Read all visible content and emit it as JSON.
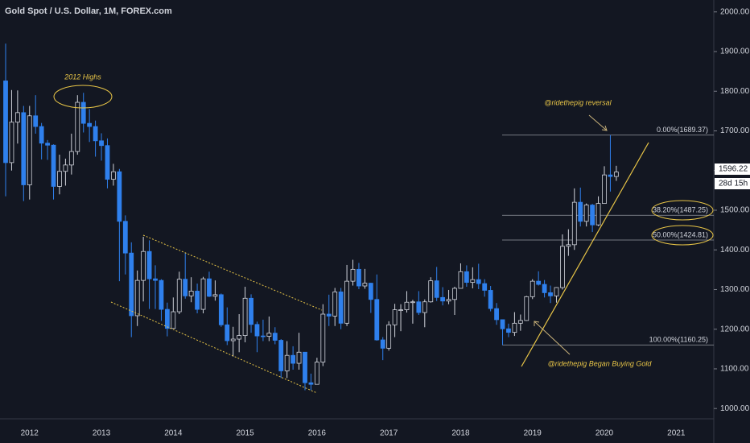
{
  "chart_data": {
    "type": "candlestick",
    "title": "Gold Spot / U.S. Dollar, 1M, FOREX.com",
    "categories": [
      null,
      null,
      null,
      null,
      "2012",
      null,
      null,
      null,
      null,
      null,
      null,
      null,
      null,
      null,
      null,
      null,
      "2013",
      null,
      null,
      null,
      null,
      null,
      null,
      null,
      null,
      null,
      null,
      null,
      "2014",
      null,
      null,
      null,
      null,
      null,
      null,
      null,
      null,
      null,
      null,
      null,
      "2015",
      null,
      null,
      null,
      null,
      null,
      null,
      null,
      null,
      null,
      null,
      null,
      "2016",
      null,
      null,
      null,
      null,
      null,
      null,
      null,
      null,
      null,
      null,
      null,
      "2017",
      null,
      null,
      null,
      null,
      null,
      null,
      null,
      null,
      null,
      null,
      null,
      "2018",
      null,
      null,
      null,
      null,
      null,
      null,
      null,
      null,
      null,
      null,
      null,
      "2019",
      null,
      null,
      null,
      null,
      null,
      null,
      null,
      null,
      null,
      null,
      null,
      "2020",
      null,
      null,
      null,
      null,
      null,
      null,
      null,
      null,
      null,
      null,
      null,
      "2021",
      null,
      null,
      null
    ],
    "open": [
      1826,
      1620,
      1722,
      1746,
      1564,
      1738,
      1711,
      1669,
      1664,
      1560,
      1598,
      1614,
      1648,
      1772,
      1719,
      1711,
      1675,
      1663,
      1578,
      1597,
      1472,
      1392,
      1234,
      1323,
      1396,
      1327,
      1323,
      1250,
      1202,
      1244,
      1326,
      1284,
      1296,
      1250,
      1327,
      1283,
      1287,
      1211,
      1171,
      1175,
      1184,
      1278,
      1212,
      1183,
      1182,
      1190,
      1172,
      1095,
      1134,
      1114,
      1142,
      1065,
      1061,
      1117,
      1238,
      1233,
      1294,
      1215,
      1321,
      1351,
      1309,
      1316,
      1275,
      1173,
      1152,
      1211,
      1249,
      1249,
      1268,
      1269,
      1242,
      1269,
      1322,
      1280,
      1271,
      1275,
      1303,
      1345,
      1318,
      1325,
      1315,
      1298,
      1252,
      1224,
      1201,
      1192,
      1215,
      1222,
      1282,
      1321,
      1313,
      1292,
      1284,
      1305,
      1409,
      1413,
      1520,
      1472,
      1513,
      1463,
      1517,
      1589,
      1585,
      null,
      null,
      null,
      null,
      null,
      null,
      null,
      null,
      null,
      null,
      null,
      null,
      null
    ],
    "high": [
      1920,
      1803,
      1802,
      1763,
      1763,
      1790,
      1720,
      1677,
      1666,
      1640,
      1630,
      1693,
      1790,
      1796,
      1755,
      1726,
      1694,
      1681,
      1617,
      1604,
      1487,
      1419,
      1348,
      1433,
      1424,
      1361,
      1326,
      1267,
      1280,
      1345,
      1392,
      1331,
      1315,
      1332,
      1345,
      1323,
      1290,
      1255,
      1206,
      1238,
      1307,
      1288,
      1219,
      1224,
      1232,
      1205,
      1175,
      1170,
      1157,
      1191,
      1142,
      1088,
      1128,
      1263,
      1287,
      1304,
      1304,
      1362,
      1375,
      1367,
      1352,
      1317,
      1338,
      1180,
      1220,
      1264,
      1263,
      1296,
      1274,
      1296,
      1275,
      1331,
      1357,
      1306,
      1299,
      1307,
      1366,
      1361,
      1356,
      1365,
      1326,
      1309,
      1266,
      1224,
      1214,
      1243,
      1237,
      1284,
      1326,
      1346,
      1324,
      1310,
      1306,
      1439,
      1452,
      1555,
      1557,
      1517,
      1516,
      1535,
      1611,
      1689.37,
      1612,
      null,
      null,
      null,
      null,
      null,
      null,
      null,
      null,
      null,
      null,
      null,
      null,
      null
    ],
    "low": [
      1535,
      1600,
      1668,
      1523,
      1527,
      1693,
      1628,
      1627,
      1527,
      1540,
      1562,
      1590,
      1640,
      1696,
      1672,
      1635,
      1625,
      1555,
      1562,
      1321,
      1338,
      1180,
      1208,
      1270,
      1251,
      1251,
      1221,
      1182,
      1202,
      1238,
      1277,
      1268,
      1240,
      1240,
      1281,
      1272,
      1206,
      1160,
      1131,
      1142,
      1167,
      1191,
      1142,
      1170,
      1170,
      1162,
      1077,
      1077,
      1098,
      1098,
      1046,
      1046,
      1061,
      1107,
      1208,
      1208,
      1200,
      1208,
      1310,
      1301,
      1302,
      1241,
      1171,
      1122,
      1146,
      1180,
      1195,
      1242,
      1214,
      1236,
      1205,
      1267,
      1271,
      1260,
      1263,
      1236,
      1303,
      1307,
      1303,
      1301,
      1282,
      1245,
      1211,
      1160.25,
      1180,
      1183,
      1196,
      1221,
      1276,
      1310,
      1280,
      1266,
      1267,
      1300,
      1385,
      1400,
      1459,
      1459,
      1445,
      1460,
      1517,
      1547,
      1574,
      null,
      null,
      null,
      null,
      null,
      null,
      null,
      null,
      null,
      null,
      null,
      null,
      null
    ],
    "close": [
      1620,
      1722,
      1746,
      1564,
      1738,
      1711,
      1669,
      1664,
      1560,
      1598,
      1614,
      1648,
      1772,
      1719,
      1711,
      1675,
      1663,
      1578,
      1597,
      1472,
      1392,
      1234,
      1323,
      1396,
      1327,
      1323,
      1250,
      1202,
      1244,
      1326,
      1284,
      1296,
      1250,
      1327,
      1283,
      1287,
      1211,
      1171,
      1175,
      1184,
      1278,
      1212,
      1183,
      1182,
      1190,
      1172,
      1095,
      1134,
      1114,
      1142,
      1065,
      1061,
      1117,
      1238,
      1233,
      1294,
      1215,
      1321,
      1351,
      1309,
      1316,
      1275,
      1173,
      1152,
      1211,
      1249,
      1249,
      1268,
      1269,
      1242,
      1269,
      1322,
      1280,
      1271,
      1275,
      1303,
      1345,
      1318,
      1325,
      1315,
      1298,
      1252,
      1224,
      1201,
      1192,
      1215,
      1222,
      1282,
      1321,
      1313,
      1292,
      1284,
      1305,
      1409,
      1413,
      1520,
      1472,
      1513,
      1463,
      1517,
      1589,
      1585,
      1596.22,
      null,
      null,
      null,
      null,
      null,
      null,
      null,
      null,
      null,
      null,
      null,
      null,
      null
    ],
    "up_color": "#d1d4dc",
    "down_color": "#2f80ed",
    "ylim": [
      974,
      2030
    ],
    "yticks": [
      {
        "value": 1000,
        "label": "1000.00"
      },
      {
        "value": 1100,
        "label": "1100.00"
      },
      {
        "value": 1200,
        "label": "1200.00"
      },
      {
        "value": 1300,
        "label": "1300.00"
      },
      {
        "value": 1400,
        "label": "1400.00"
      },
      {
        "value": 1500,
        "label": "1500.00"
      },
      {
        "value": 1600,
        "label": "1600.00"
      },
      {
        "value": 1700,
        "label": "1700.00"
      },
      {
        "value": 1800,
        "label": "1800.00"
      },
      {
        "value": 1900,
        "label": "1900.00"
      },
      {
        "value": 2000,
        "label": "2000.00"
      }
    ],
    "fib_levels": [
      {
        "value": 1689.37,
        "label": "0.00%(1689.37)"
      },
      {
        "value": 1487.25,
        "label": "38.20%(1487.25)"
      },
      {
        "value": 1424.81,
        "label": "50.00%(1424.81)"
      },
      {
        "value": 1160.25,
        "label": "100.00%(1160.25)"
      }
    ],
    "countdown": "28d 15h",
    "annotations": [
      "2012 Highs",
      "@ridethepig reversal",
      "@ridethepig Began Buying Gold"
    ]
  }
}
